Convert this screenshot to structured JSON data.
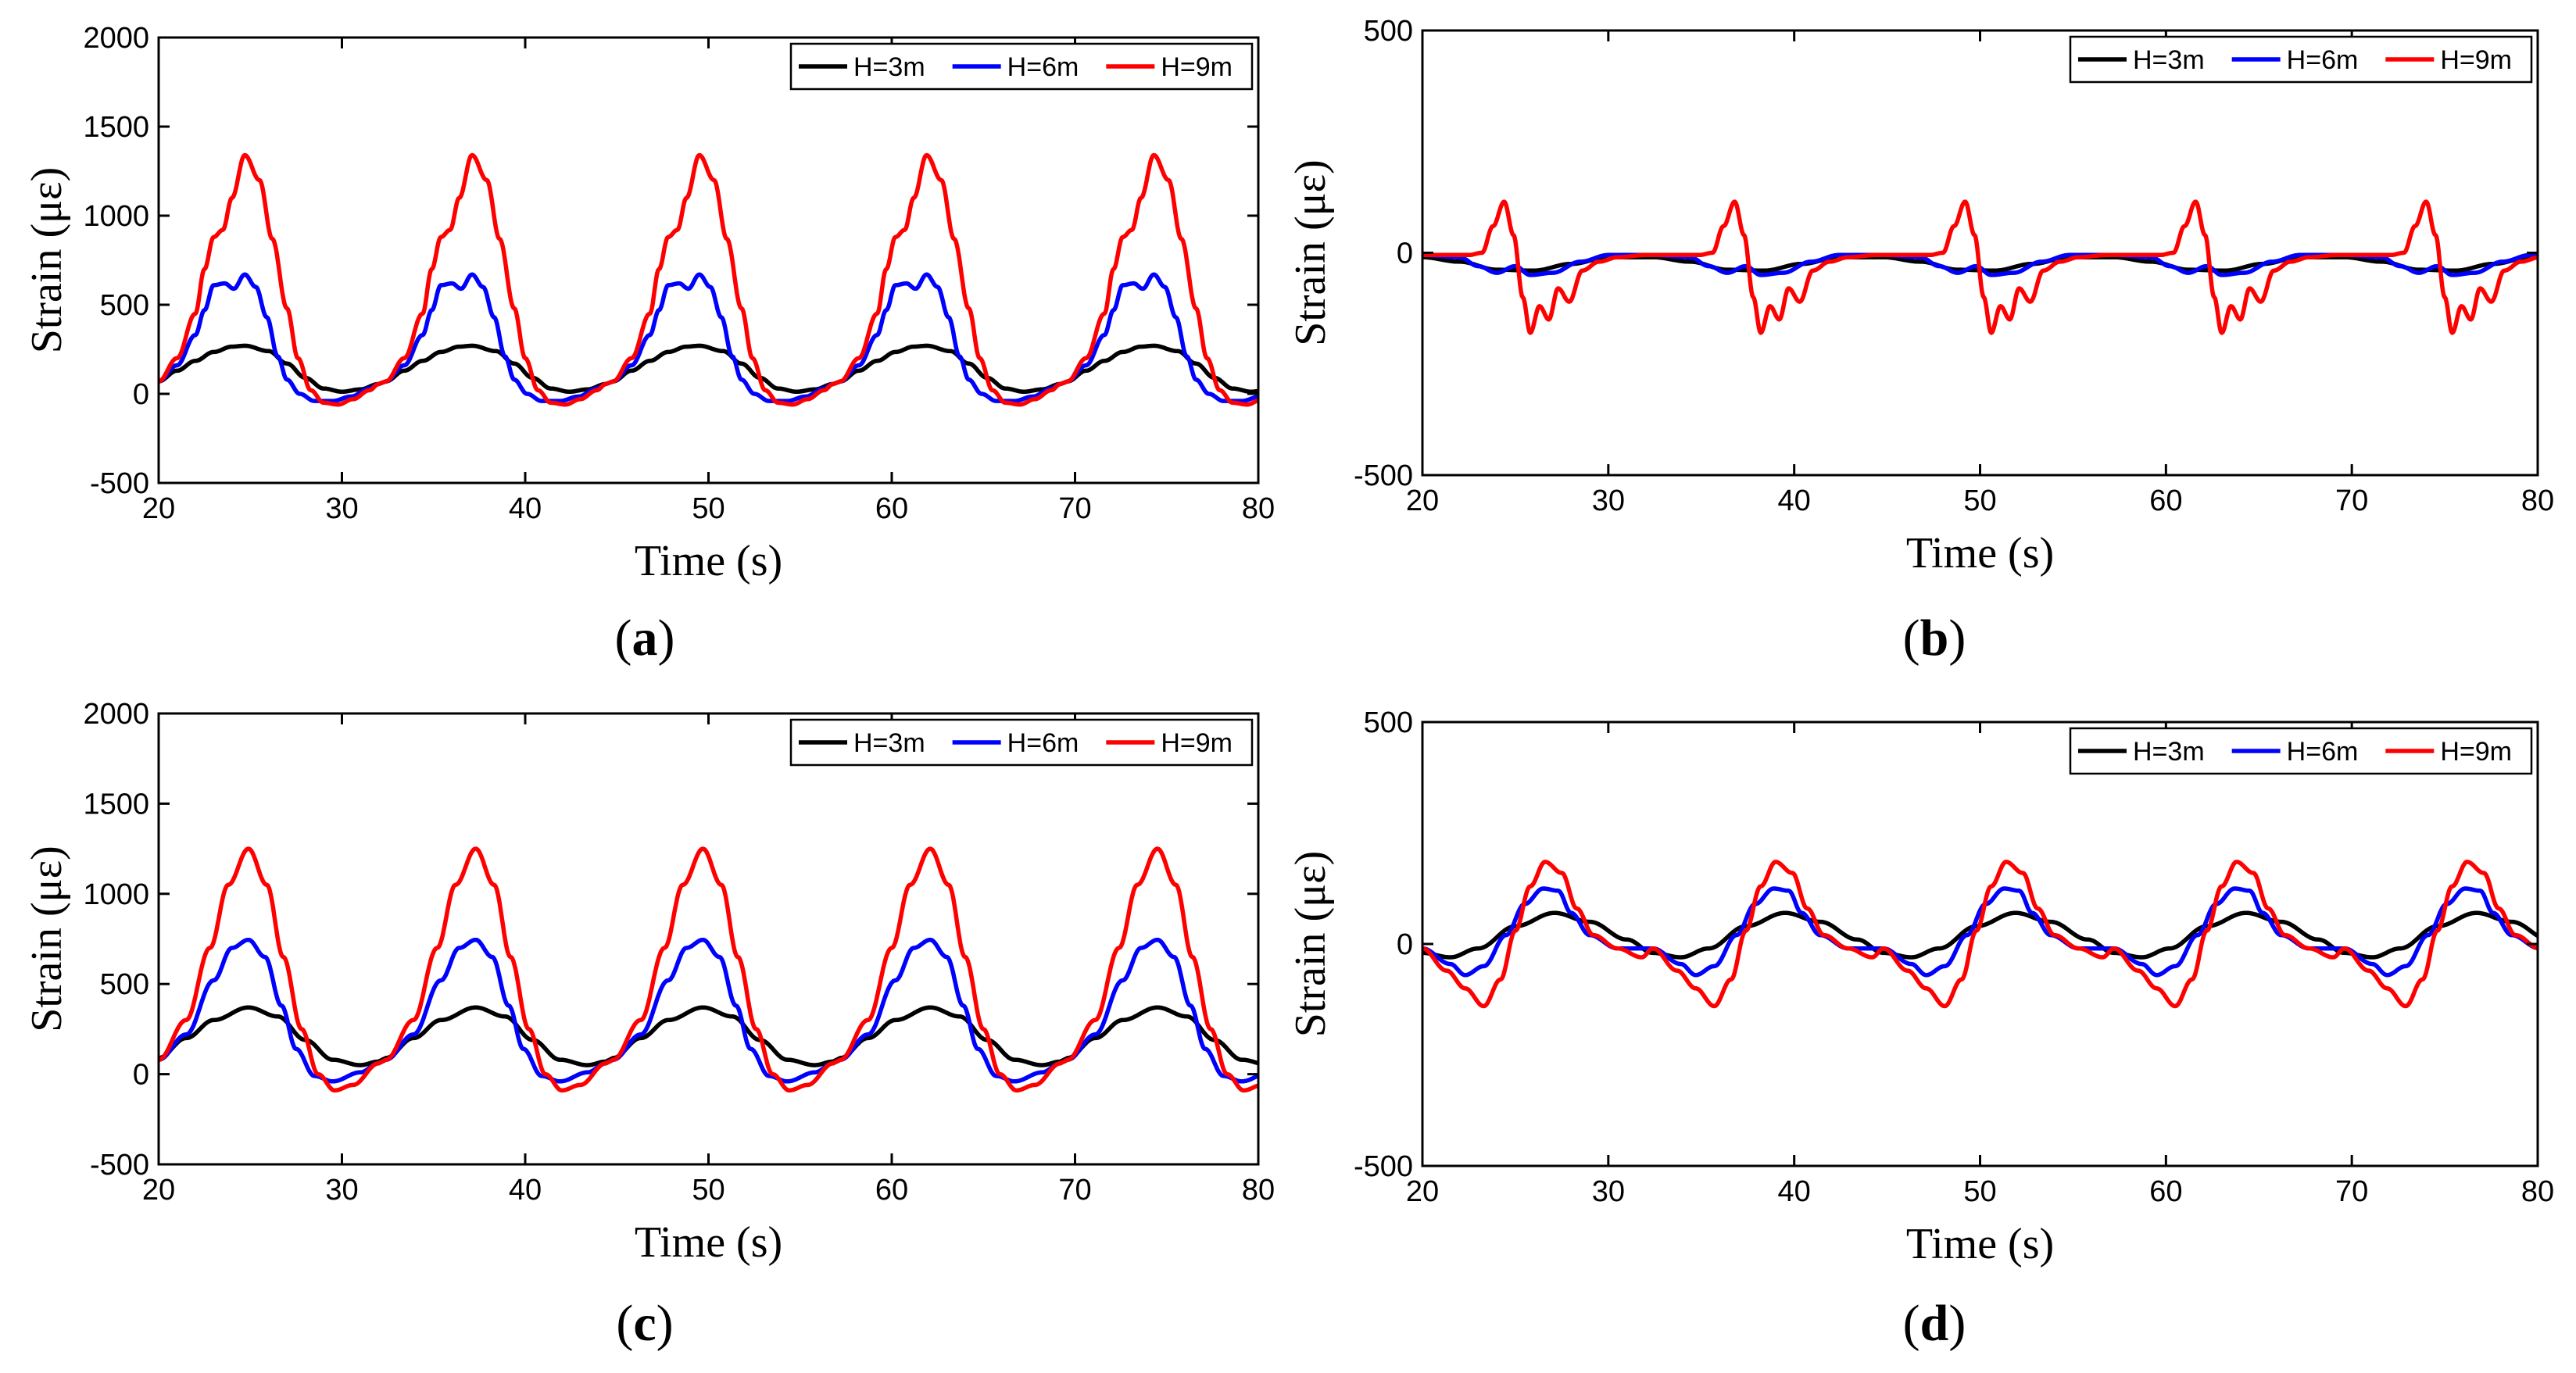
{
  "chart_data": [
    {
      "type": "line",
      "panel": "a",
      "panel_label": "(a)",
      "xlabel": "Time (s)",
      "ylabel": "Strain (με)",
      "xlim": [
        20,
        80
      ],
      "ylim": [
        -500,
        2000
      ],
      "xticks": [
        20,
        30,
        40,
        50,
        60,
        70,
        80
      ],
      "yticks": [
        -500,
        0,
        500,
        1000,
        1500,
        2000
      ],
      "legend_position": "top-right",
      "period": 12.4,
      "series": [
        {
          "name": "H=3m",
          "color": "#000000",
          "x": [
            20,
            21,
            22,
            23,
            24,
            24.7,
            26,
            27,
            28,
            29,
            30,
            31,
            32
          ],
          "values": [
            70,
            130,
            185,
            235,
            265,
            270,
            240,
            170,
            90,
            30,
            12,
            25,
            55
          ]
        },
        {
          "name": "H=6m",
          "color": "#0000ff",
          "x": [
            20,
            21,
            22,
            22.5,
            23,
            23.6,
            24.1,
            24.7,
            25.3,
            25.9,
            26.5,
            27,
            27.7,
            28.5,
            29.5,
            30.5,
            31.5,
            32
          ],
          "values": [
            70,
            160,
            330,
            470,
            610,
            620,
            590,
            670,
            600,
            430,
            210,
            80,
            0,
            -40,
            -40,
            -15,
            30,
            55
          ]
        },
        {
          "name": "H=9m",
          "color": "#ff0000",
          "x": [
            20,
            21,
            22,
            22.5,
            23,
            23.5,
            24,
            24.7,
            25.5,
            26.2,
            27,
            27.6,
            28.3,
            29,
            29.8,
            30.6,
            31.5,
            32
          ],
          "values": [
            70,
            200,
            450,
            700,
            880,
            920,
            1100,
            1340,
            1200,
            870,
            480,
            200,
            20,
            -50,
            -60,
            -30,
            20,
            55
          ]
        }
      ]
    },
    {
      "type": "line",
      "panel": "b",
      "panel_label": "(b)",
      "xlabel": "Time (s)",
      "ylabel": "Strain (με)",
      "xlim": [
        20,
        80
      ],
      "ylim": [
        -500,
        500
      ],
      "xticks": [
        20,
        30,
        40,
        50,
        60,
        70,
        80
      ],
      "yticks": [
        -500,
        0,
        500
      ],
      "legend_position": "top-right",
      "period": 12.4,
      "series": [
        {
          "name": "H=3m",
          "color": "#000000",
          "x": [
            20,
            22,
            24,
            26,
            28,
            30,
            32
          ],
          "values": [
            -10,
            -20,
            -38,
            -40,
            -25,
            -10,
            -10
          ]
        },
        {
          "name": "H=6m",
          "color": "#0000ff",
          "x": [
            20,
            22,
            23,
            24,
            25,
            25.8,
            27,
            28.5,
            30,
            32
          ],
          "values": [
            -5,
            -10,
            -30,
            -45,
            -30,
            -50,
            -45,
            -20,
            -5,
            -5
          ]
        },
        {
          "name": "H=9m",
          "color": "#ff0000",
          "x": [
            20,
            22.5,
            23.2,
            23.8,
            24.4,
            24.9,
            25.4,
            25.8,
            26.3,
            26.8,
            27.3,
            27.9,
            28.6,
            29.5,
            30.5,
            32
          ],
          "values": [
            -5,
            -5,
            0,
            60,
            115,
            40,
            -100,
            -180,
            -120,
            -150,
            -80,
            -110,
            -40,
            -20,
            -10,
            -5
          ]
        }
      ]
    },
    {
      "type": "line",
      "panel": "c",
      "panel_label": "(c)",
      "xlabel": "Time (s)",
      "ylabel": "Strain (με)",
      "xlim": [
        20,
        80
      ],
      "ylim": [
        -500,
        2000
      ],
      "xticks": [
        20,
        30,
        40,
        50,
        60,
        70,
        80
      ],
      "yticks": [
        -500,
        0,
        500,
        1000,
        1500,
        2000
      ],
      "legend_position": "top-right",
      "period": 12.4,
      "series": [
        {
          "name": "H=3m",
          "color": "#000000",
          "x": [
            20,
            21.5,
            23,
            24.9,
            26.5,
            28,
            29.5,
            31,
            32
          ],
          "values": [
            90,
            200,
            300,
            370,
            320,
            190,
            80,
            50,
            70
          ]
        },
        {
          "name": "H=6m",
          "color": "#0000ff",
          "x": [
            20,
            21.5,
            23,
            24,
            24.9,
            25.8,
            26.7,
            27.5,
            28.5,
            29.5,
            31,
            32
          ],
          "values": [
            80,
            220,
            520,
            700,
            745,
            650,
            380,
            140,
            -10,
            -40,
            10,
            60
          ]
        },
        {
          "name": "H=9m",
          "color": "#ff0000",
          "x": [
            20,
            21.5,
            22.8,
            23.8,
            24.9,
            25.9,
            26.8,
            27.8,
            28.7,
            29.6,
            30.6,
            32
          ],
          "values": [
            80,
            300,
            700,
            1050,
            1250,
            1050,
            650,
            250,
            0,
            -90,
            -60,
            60
          ]
        }
      ]
    },
    {
      "type": "line",
      "panel": "d",
      "panel_label": "(d)",
      "xlabel": "Time (s)",
      "ylabel": "Strain (με)",
      "xlim": [
        20,
        80
      ],
      "ylim": [
        -500,
        500
      ],
      "xticks": [
        20,
        30,
        40,
        50,
        60,
        70,
        80
      ],
      "yticks": [
        -500,
        0,
        500
      ],
      "legend_position": "top-right",
      "period": 12.4,
      "series": [
        {
          "name": "H=3m",
          "color": "#000000",
          "x": [
            20,
            21.5,
            23,
            25,
            27.1,
            29,
            31,
            32.4
          ],
          "values": [
            -20,
            -30,
            -10,
            40,
            70,
            50,
            10,
            -20
          ]
        },
        {
          "name": "H=6m",
          "color": "#0000ff",
          "x": [
            20,
            21.5,
            22.3,
            23.3,
            24.5,
            25.5,
            26.5,
            27.3,
            28,
            29,
            30.5,
            32.4
          ],
          "values": [
            -10,
            -45,
            -70,
            -50,
            20,
            90,
            125,
            120,
            70,
            20,
            -10,
            -10
          ]
        },
        {
          "name": "H=9m",
          "color": "#ff0000",
          "x": [
            20,
            21.3,
            22.3,
            23.3,
            24.2,
            25,
            25.8,
            26.6,
            27.5,
            28.3,
            29.2,
            30.5,
            31.8,
            32.4
          ],
          "values": [
            -10,
            -60,
            -100,
            -140,
            -80,
            30,
            130,
            185,
            160,
            80,
            20,
            -10,
            -30,
            -10
          ]
        }
      ]
    }
  ]
}
